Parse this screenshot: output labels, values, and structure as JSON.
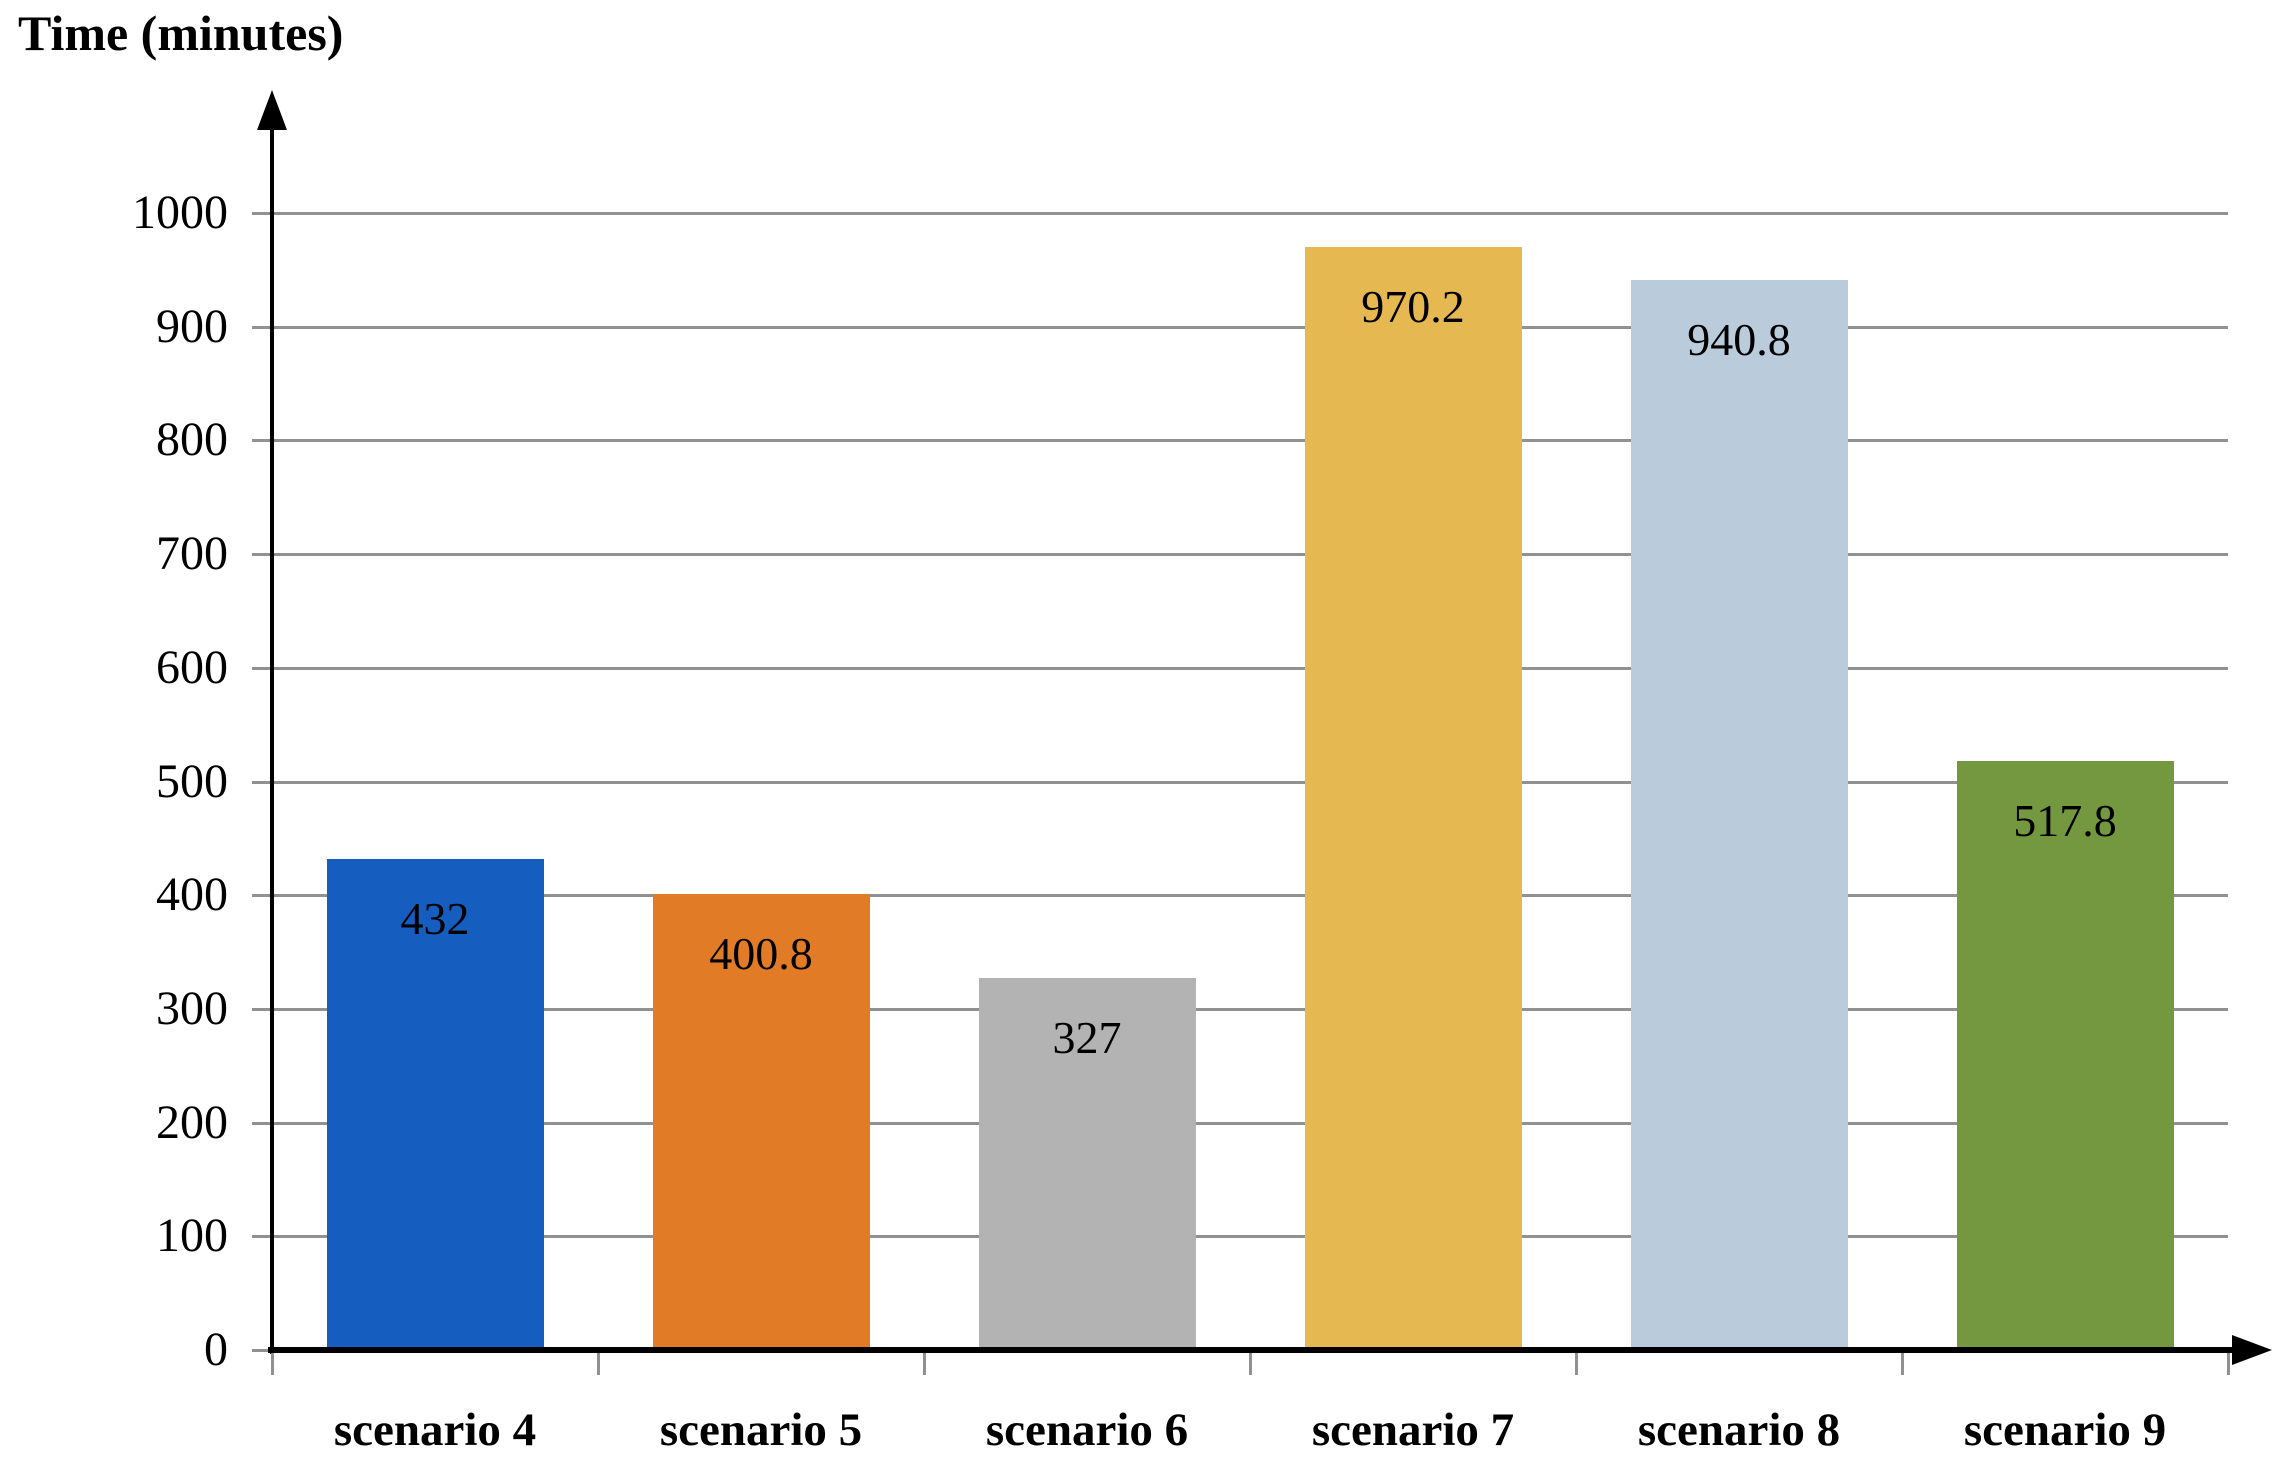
{
  "chart_data": {
    "type": "bar",
    "title": "Time (minutes)",
    "xlabel": "",
    "ylabel": "Time (minutes)",
    "categories": [
      "scenario 4",
      "scenario 5",
      "scenario 6",
      "scenario 7",
      "scenario 8",
      "scenario 9"
    ],
    "values": [
      432,
      400.8,
      327,
      970.2,
      940.8,
      517.8
    ],
    "value_labels": [
      "432",
      "400.8",
      "327",
      "970.2",
      "940.8",
      "517.8"
    ],
    "bar_colors": [
      "#155EC0",
      "#E17B26",
      "#B3B3B3",
      "#E5B851",
      "#BACBDC",
      "#73983F"
    ],
    "ylim": [
      0,
      1000
    ],
    "ytick_step": 100,
    "ytick_labels": [
      "0",
      "100",
      "200",
      "300",
      "400",
      "500",
      "600",
      "700",
      "800",
      "900",
      "1000"
    ],
    "grid": true,
    "legend_position": "none",
    "gridline_color": "#919191",
    "tick_color": "#919191",
    "axis_color": "#000000",
    "text_color": "#000000"
  }
}
